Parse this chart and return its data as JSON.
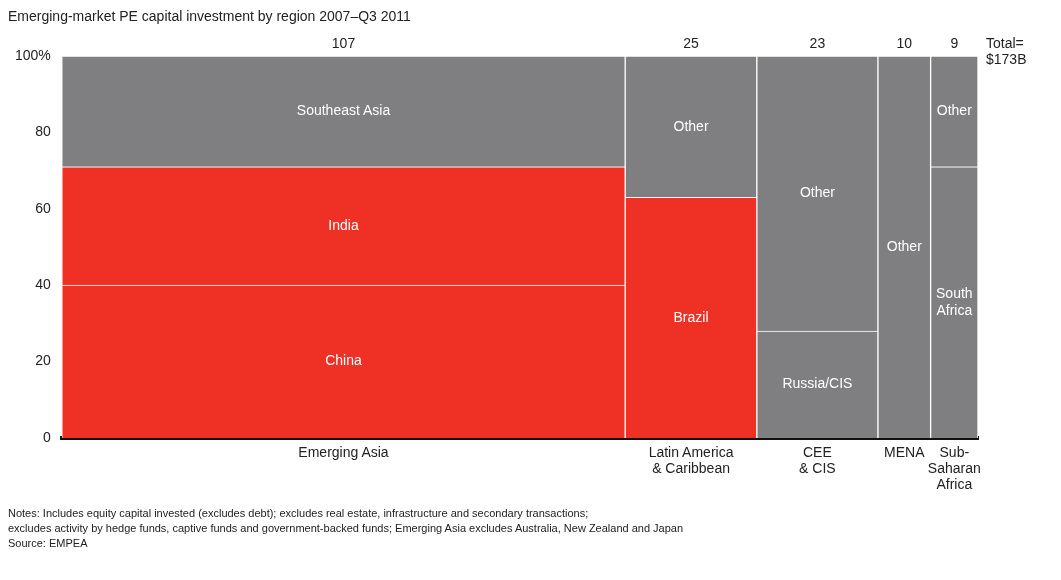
{
  "chart_data": {
    "type": "bar",
    "stacked": true,
    "title": "Emerging-market PE capital investment by region 2007–Q3 2011",
    "categories": [
      "Emerging Asia",
      "Latin America\n& Caribbean",
      "CEE\n& CIS",
      "MENA",
      "Sub-\nSaharan\nAfrica"
    ],
    "series": [
      {
        "values": [
          40,
          63,
          28,
          100,
          71
        ],
        "colors": [
          "#ee3124",
          "#ee3124",
          "#7f7f81",
          "#7f7f81",
          "#7f7f81"
        ],
        "value_labels": [
          "China",
          "Brazil",
          "Russia/CIS",
          "Other",
          "South\nAfrica"
        ]
      },
      {
        "values": [
          31,
          37,
          72,
          null,
          29
        ],
        "colors": [
          "#ee3124",
          "#7f7f81",
          "#7f7f81",
          "#7f7f81",
          "#7f7f81"
        ],
        "value_labels": [
          "India",
          "Other",
          "Other",
          null,
          "Other"
        ]
      },
      {
        "values": [
          29,
          null,
          null,
          null,
          null
        ],
        "colors": [
          "#7f7f81",
          "#7f7f81",
          "#7f7f81",
          "#7f7f81",
          "#7f7f81"
        ],
        "value_labels": [
          "Southeast Asia",
          null,
          null,
          null,
          null
        ]
      }
    ],
    "ylim": [
      0,
      100
    ],
    "yticks": [
      0,
      20,
      40,
      60,
      80,
      {
        "value": 100,
        "label": "100%"
      }
    ],
    "grid": false,
    "legend": false,
    "annotations": [
      "Total=\n$173B",
      {
        "text": "107",
        "x": "Emerging Asia",
        "y": 100
      },
      {
        "text": "25",
        "x": "Latin America\n& Caribbean",
        "y": 100
      },
      {
        "text": "23",
        "x": "CEE\n& CIS",
        "y": 100
      },
      {
        "text": "10",
        "x": "MENA",
        "y": 100
      },
      {
        "text": "9",
        "x": "Sub-\nSaharan\nAfrica",
        "y": 100
      },
      "Notes: Includes equity capital invested (excludes debt); excludes real estate, infrastructure and secondary transactions;\nexcludes activity by hedge funds, captive funds and government-backed funds; Emerging Asia excludes Australia, New Zealand and Japan",
      "Source: EMPEA"
    ]
  }
}
